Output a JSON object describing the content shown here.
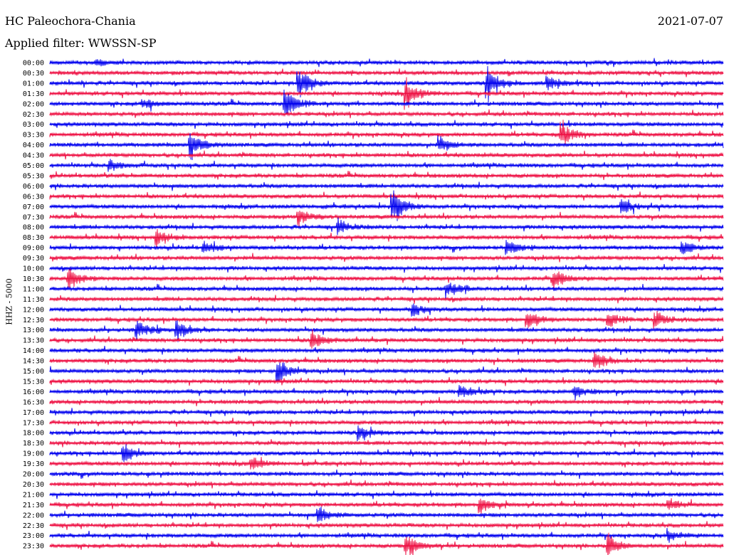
{
  "header": {
    "station": "HC Paleochora-Chania",
    "date": "2021-07-07",
    "filter": "Applied filter: WWSSN-SP"
  },
  "colors": {
    "trace_a": "#0000ee",
    "trace_b": "#ee1144",
    "text": "#000000"
  },
  "chart_data": {
    "type": "line",
    "title": "HC Paleochora-Chania",
    "ylabel": "HHZ - 5000",
    "row_labels": [
      "00:00",
      "00:30",
      "01:00",
      "01:30",
      "02:00",
      "02:30",
      "03:00",
      "03:30",
      "04:00",
      "04:30",
      "05:00",
      "05:30",
      "06:00",
      "06:30",
      "07:00",
      "07:30",
      "08:00",
      "08:30",
      "09:00",
      "09:30",
      "10:00",
      "10:30",
      "11:00",
      "11:30",
      "12:00",
      "12:30",
      "13:00",
      "13:30",
      "14:00",
      "14:30",
      "15:00",
      "15:30",
      "16:00",
      "16:30",
      "17:00",
      "17:30",
      "18:00",
      "18:30",
      "19:00",
      "19:30",
      "20:00",
      "20:30",
      "21:00",
      "21:30",
      "22:00",
      "22:30",
      "23:00",
      "23:30"
    ],
    "row_colors": [
      "blue",
      "red"
    ],
    "events": [
      {
        "row": "00:00",
        "x": 0.07,
        "amp": 5
      },
      {
        "row": "01:00",
        "x": 0.37,
        "amp": 30
      },
      {
        "row": "01:00",
        "x": 0.65,
        "amp": 30
      },
      {
        "row": "01:00",
        "x": 0.74,
        "amp": 12
      },
      {
        "row": "01:30",
        "x": 0.53,
        "amp": 25
      },
      {
        "row": "02:00",
        "x": 0.35,
        "amp": 25
      },
      {
        "row": "02:00",
        "x": 0.14,
        "amp": 8
      },
      {
        "row": "03:30",
        "x": 0.76,
        "amp": 22
      },
      {
        "row": "04:00",
        "x": 0.21,
        "amp": 22
      },
      {
        "row": "04:00",
        "x": 0.58,
        "amp": 12
      },
      {
        "row": "05:00",
        "x": 0.09,
        "amp": 10
      },
      {
        "row": "07:00",
        "x": 0.51,
        "amp": 30
      },
      {
        "row": "07:00",
        "x": 0.85,
        "amp": 12
      },
      {
        "row": "07:30",
        "x": 0.37,
        "amp": 14
      },
      {
        "row": "08:00",
        "x": 0.43,
        "amp": 12
      },
      {
        "row": "08:30",
        "x": 0.16,
        "amp": 16
      },
      {
        "row": "09:00",
        "x": 0.23,
        "amp": 10
      },
      {
        "row": "09:00",
        "x": 0.68,
        "amp": 14
      },
      {
        "row": "09:00",
        "x": 0.94,
        "amp": 12
      },
      {
        "row": "10:30",
        "x": 0.03,
        "amp": 16
      },
      {
        "row": "10:30",
        "x": 0.75,
        "amp": 16
      },
      {
        "row": "11:00",
        "x": 0.59,
        "amp": 12
      },
      {
        "row": "12:00",
        "x": 0.54,
        "amp": 12
      },
      {
        "row": "12:30",
        "x": 0.71,
        "amp": 14
      },
      {
        "row": "12:30",
        "x": 0.9,
        "amp": 14
      },
      {
        "row": "12:30",
        "x": 0.83,
        "amp": 12
      },
      {
        "row": "13:00",
        "x": 0.13,
        "amp": 14
      },
      {
        "row": "13:00",
        "x": 0.19,
        "amp": 16
      },
      {
        "row": "13:30",
        "x": 0.39,
        "amp": 18
      },
      {
        "row": "14:30",
        "x": 0.81,
        "amp": 16
      },
      {
        "row": "15:00",
        "x": 0.34,
        "amp": 20
      },
      {
        "row": "16:00",
        "x": 0.61,
        "amp": 12
      },
      {
        "row": "16:00",
        "x": 0.78,
        "amp": 10
      },
      {
        "row": "18:00",
        "x": 0.46,
        "amp": 12
      },
      {
        "row": "19:00",
        "x": 0.11,
        "amp": 14
      },
      {
        "row": "19:30",
        "x": 0.3,
        "amp": 12
      },
      {
        "row": "21:30",
        "x": 0.64,
        "amp": 12
      },
      {
        "row": "21:30",
        "x": 0.92,
        "amp": 10
      },
      {
        "row": "22:00",
        "x": 0.4,
        "amp": 14
      },
      {
        "row": "23:00",
        "x": 0.92,
        "amp": 10
      },
      {
        "row": "23:30",
        "x": 0.53,
        "amp": 20
      },
      {
        "row": "23:30",
        "x": 0.83,
        "amp": 18
      }
    ]
  }
}
